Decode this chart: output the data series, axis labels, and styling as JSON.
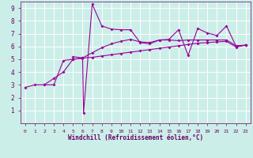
{
  "xlabel": "Windchill (Refroidissement éolien,°C)",
  "background_color": "#cceee8",
  "grid_color": "#ffffff",
  "line_color": "#990099",
  "xlim": [
    -0.5,
    23.5
  ],
  "ylim": [
    0,
    9.5
  ],
  "xticks": [
    0,
    1,
    2,
    3,
    4,
    5,
    6,
    7,
    8,
    9,
    10,
    11,
    12,
    13,
    14,
    15,
    16,
    17,
    18,
    19,
    20,
    21,
    22,
    23
  ],
  "yticks": [
    1,
    2,
    3,
    4,
    5,
    6,
    7,
    8,
    9
  ],
  "series1_x": [
    0,
    1,
    2,
    3,
    4,
    5,
    6,
    7,
    8,
    9,
    10,
    11,
    12,
    13,
    14,
    15,
    16,
    17,
    18,
    19,
    20,
    21,
    22,
    23
  ],
  "series1_y": [
    2.8,
    3.0,
    3.0,
    3.5,
    4.0,
    5.0,
    5.1,
    5.15,
    5.25,
    5.35,
    5.45,
    5.55,
    5.65,
    5.75,
    5.85,
    5.95,
    6.05,
    6.15,
    6.25,
    6.3,
    6.35,
    6.4,
    5.95,
    6.1
  ],
  "series2_x": [
    2,
    3,
    4,
    5,
    6,
    6.1,
    7,
    8,
    9,
    10,
    11,
    12,
    13,
    14,
    15,
    16,
    17,
    18,
    19,
    20,
    21,
    22,
    23
  ],
  "series2_y": [
    3.0,
    3.0,
    4.9,
    5.0,
    5.05,
    0.8,
    9.3,
    7.6,
    7.35,
    7.3,
    7.3,
    6.3,
    6.2,
    6.5,
    6.55,
    7.3,
    5.3,
    7.4,
    7.05,
    6.85,
    7.6,
    6.0,
    6.1
  ],
  "series3_x": [
    5,
    6,
    7,
    8,
    9,
    10,
    11,
    12,
    13,
    14,
    15,
    16,
    17,
    18,
    19,
    20,
    21,
    22,
    23
  ],
  "series3_y": [
    5.2,
    5.1,
    5.5,
    5.9,
    6.2,
    6.4,
    6.55,
    6.35,
    6.3,
    6.5,
    6.5,
    6.45,
    6.5,
    6.5,
    6.5,
    6.5,
    6.5,
    6.05,
    6.1
  ]
}
